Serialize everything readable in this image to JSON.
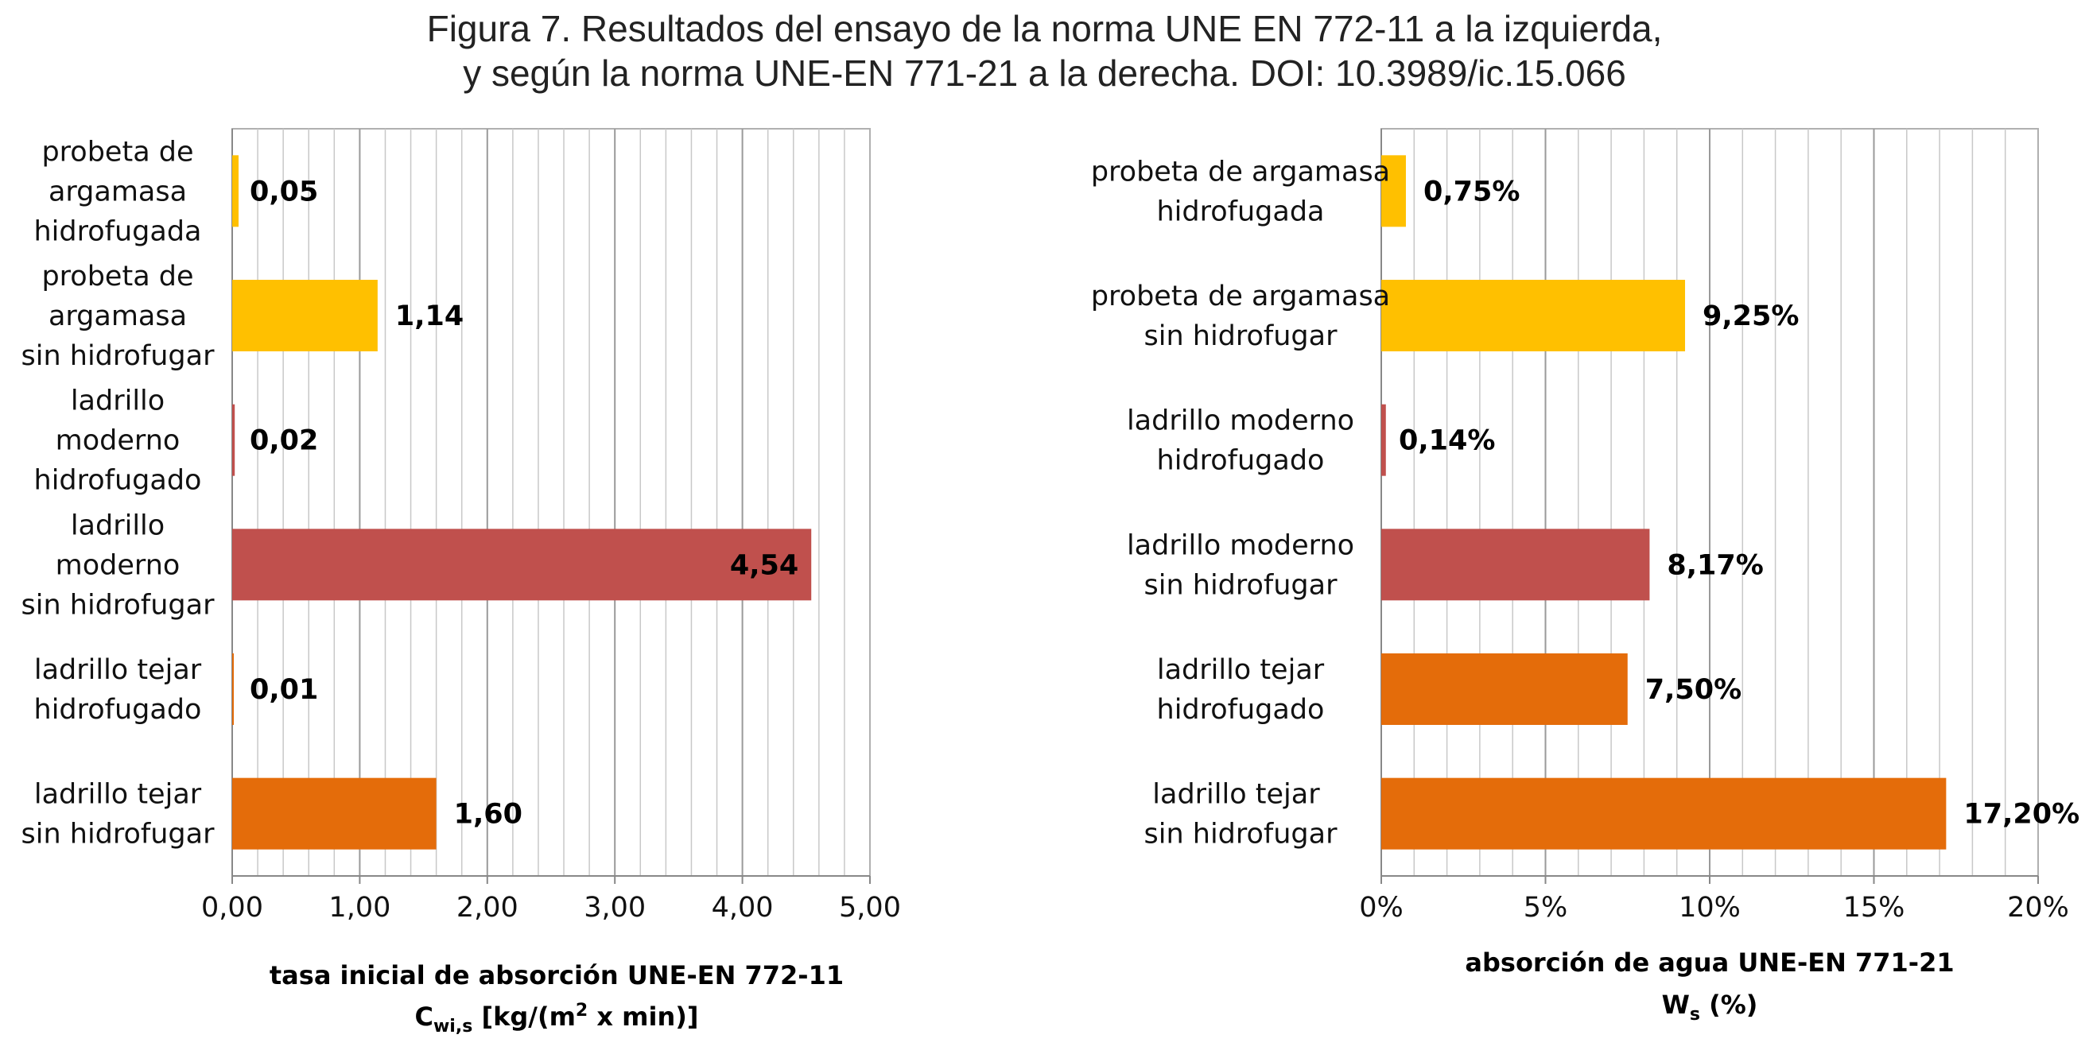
{
  "figure": {
    "title_line1": "Figura 7. Resultados del ensayo de la norma UNE EN 772-11 a la izquierda,",
    "title_line2": "y según la norma UNE-EN 771-21 a la derecha. DOI: 10.3989/ic.15.066"
  },
  "colors": {
    "amarillo": "#FFC000",
    "rojo": "#C0504D",
    "naranja": "#E46C0A",
    "grid": "#B0B0B0",
    "axis": "#888888"
  },
  "chart_data": [
    {
      "type": "bar",
      "orientation": "horizontal",
      "categories": [
        [
          "probeta de",
          "argamasa",
          "hidrofugada"
        ],
        [
          "probeta de",
          "argamasa",
          "sin hidrofugar"
        ],
        [
          "ladrillo",
          "moderno",
          "hidrofugado"
        ],
        [
          "ladrillo",
          "moderno",
          "sin hidrofugar"
        ],
        [
          "ladrillo tejar",
          "hidrofugado"
        ],
        [
          "ladrillo tejar",
          "sin hidrofugar"
        ]
      ],
      "values": [
        0.05,
        1.14,
        0.02,
        4.54,
        0.01,
        1.6
      ],
      "value_labels": [
        "0,05",
        "1,14",
        "0,02",
        "4,54",
        "0,01",
        "1,60"
      ],
      "bar_colors": [
        "#FFC000",
        "#FFC000",
        "#C0504D",
        "#C0504D",
        "#E46C0A",
        "#E46C0A"
      ],
      "xlim": [
        0,
        5
      ],
      "xticks": [
        "0,00",
        "1,00",
        "2,00",
        "3,00",
        "4,00",
        "5,00"
      ],
      "xlabel_line1": "tasa inicial de absorción  UNE-EN 772-11",
      "xlabel_main": "C",
      "xlabel_sub": "wi,s",
      "xlabel_rest1": " [kg/(m",
      "xlabel_sup": "2",
      "xlabel_rest2": " x min)]",
      "grid": true,
      "minor_gridlines_per_major": 4
    },
    {
      "type": "bar",
      "orientation": "horizontal",
      "categories": [
        [
          "probeta de argamasa",
          "hidrofugada"
        ],
        [
          "probeta de argamasa",
          "sin hidrofugar"
        ],
        [
          "ladrillo moderno",
          "hidrofugado"
        ],
        [
          "ladrillo moderno",
          "sin hidrofugar"
        ],
        [
          "ladrillo tejar",
          "hidrofugado"
        ],
        [
          "ladrillo tejar ",
          "sin hidrofugar"
        ]
      ],
      "values": [
        0.75,
        9.25,
        0.14,
        8.17,
        7.5,
        17.2
      ],
      "value_labels": [
        "0,75%",
        "9,25%",
        "0,14%",
        "8,17%",
        "7,50%",
        "17,20%"
      ],
      "bar_colors": [
        "#FFC000",
        "#FFC000",
        "#C0504D",
        "#C0504D",
        "#E46C0A",
        "#E46C0A"
      ],
      "xlim": [
        0,
        20
      ],
      "xticks": [
        "0%",
        "5%",
        "10%",
        "15%",
        "20%"
      ],
      "xlabel_line1": "absorción de agua   UNE-EN 771-21",
      "xlabel_main": "W",
      "xlabel_sub": "s",
      "xlabel_rest1": " (%)",
      "grid": true,
      "minor_gridlines_per_major": 4
    }
  ]
}
